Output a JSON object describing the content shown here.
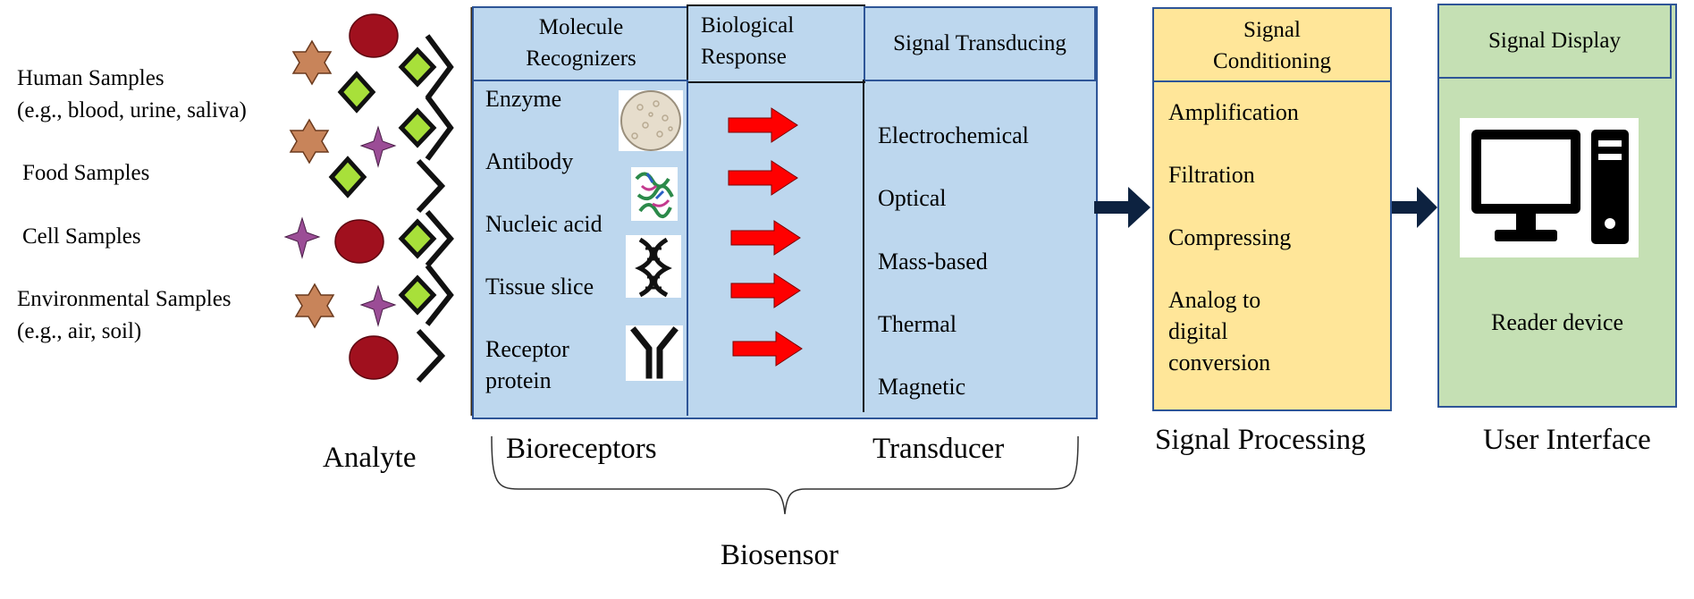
{
  "samples": {
    "human_line1": "Human Samples",
    "human_line2": "(e.g., blood, urine, saliva)",
    "food": "Food Samples",
    "cell": "Cell Samples",
    "env_line1": "Environmental Samples",
    "env_line2": "(e.g., air, soil)"
  },
  "recognizers": {
    "header_line1": "Molecule",
    "header_line2": "Recognizers",
    "items": [
      "Enzyme",
      "Antibody",
      "Nucleic acid",
      "Tissue slice",
      "Receptor",
      "protein"
    ]
  },
  "response": {
    "header_line1": "Biological",
    "header_line2": "Response"
  },
  "transducing": {
    "header": "Signal Transducing",
    "items": [
      "Electrochemical",
      "Optical",
      "Mass-based",
      "Thermal",
      "Magnetic"
    ]
  },
  "conditioning": {
    "header_line1": "Signal",
    "header_line2": "Conditioning",
    "items": [
      "Amplification",
      "Filtration",
      "Compressing",
      "Analog to",
      "digital",
      "conversion"
    ]
  },
  "display": {
    "header": "Signal Display",
    "device_label": "Reader device"
  },
  "labels": {
    "analyte": "Analyte",
    "bioreceptors": "Bioreceptors",
    "transducer": "Transducer",
    "signal_processing": "Signal Processing",
    "user_interface": "User Interface",
    "biosensor": "Biosensor"
  },
  "colors": {
    "blue_fill": "#bdd7ee",
    "blue_border": "#2e5597",
    "yellow_fill": "#ffe699",
    "green_fill": "#c5e0b4",
    "arrow_red": "#ff0000",
    "arrow_navy": "#0d2240",
    "star": "#c8845a",
    "circle": "#a0101e",
    "diamond": "#a8e03a",
    "sparkle": "#9b4d96"
  },
  "icons": [
    "star-icon",
    "circle-icon",
    "diamond-icon",
    "sparkle-star-icon",
    "receptor-chevron-icon",
    "enzyme-icon",
    "antibody-protein-icon",
    "dna-icon",
    "y-receptor-icon",
    "computer-icon"
  ]
}
